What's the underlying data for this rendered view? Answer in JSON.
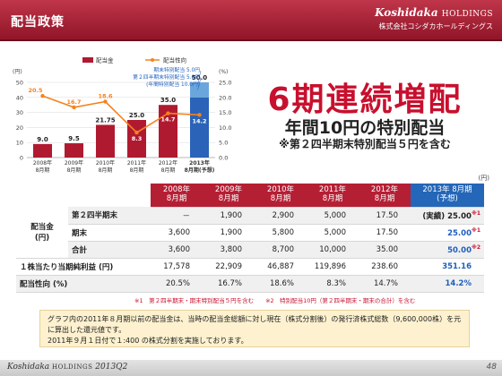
{
  "header": {
    "title": "配当政策",
    "brand_name": "Koshidaka",
    "brand_suffix": "HOLDINGS",
    "company_name": "株式会社コシダカホールディングス"
  },
  "headline": {
    "main": "6期連続増配",
    "sub": "年間10円の特別配当",
    "sub2": "※第２四半期末特別配当５円を含む"
  },
  "chart_data": {
    "type": "bar",
    "categories": [
      "2008年\n8月期",
      "2009年\n8月期",
      "2010年\n8月期",
      "2011年\n8月期",
      "2012年\n8月期",
      "2013年\n8月期(予想)"
    ],
    "series": [
      {
        "name": "配当金",
        "type": "bar",
        "axis": "left",
        "values": [
          9.0,
          9.5,
          21.75,
          25.0,
          35.0,
          50.0
        ],
        "special": [
          0,
          0,
          0,
          0,
          0,
          10.0
        ],
        "color": "#b01a30"
      },
      {
        "name": "配当性向",
        "type": "line",
        "axis": "right",
        "values": [
          20.5,
          16.7,
          18.6,
          8.3,
          14.7,
          14.2
        ],
        "color": "#f5821f"
      }
    ],
    "bar_labels": [
      "9.0",
      "9.5",
      "21.75",
      "25.0",
      "35.0",
      "50.0"
    ],
    "line_labels": [
      "20.5",
      "16.7",
      "18.6",
      "8.3",
      "14.7",
      "14.2"
    ],
    "left_axis": {
      "unit": "(円)",
      "ticks": [
        0,
        10,
        20,
        30,
        40,
        50
      ],
      "range": [
        0,
        50
      ]
    },
    "right_axis": {
      "unit": "(%)",
      "ticks": [
        "0.0",
        "5.0",
        "10.0",
        "15.0",
        "20.0",
        "25.0"
      ],
      "range": [
        0,
        25
      ]
    },
    "annotation": [
      "期末特別配当 5.0円",
      "第２四半期末特別配当 5.0円",
      "(年間特別配当 10.0円)"
    ],
    "highlight_colors": {
      "bar": "#2a63b8",
      "special": "#6aa6dc"
    }
  },
  "table": {
    "unit": "(円)",
    "headers": [
      "2008年\n8月期",
      "2009年\n8月期",
      "2010年\n8月期",
      "2011年\n8月期",
      "2012年\n8月期",
      "2013年 8月期\n(予想)"
    ],
    "group_label": "配当金\n(円)",
    "rows": [
      {
        "label": "第２四半期末",
        "values": [
          "－",
          "1,900",
          "2,900",
          "5,000",
          "17.50"
        ],
        "forecast": "(実績) 25.00",
        "mark": "※1"
      },
      {
        "label": "期末",
        "values": [
          "3,600",
          "1,900",
          "5,800",
          "5,000",
          "17.50"
        ],
        "forecast": "25.00",
        "mark": "※1"
      },
      {
        "label": "合計",
        "values": [
          "3,600",
          "3,800",
          "8,700",
          "10,000",
          "35.00"
        ],
        "forecast": "50.00",
        "mark": "※2"
      }
    ],
    "eps": {
      "label": "１株当たり当期純利益 (円)",
      "values": [
        "17,578",
        "22,909",
        "46,887",
        "119,896",
        "238.60"
      ],
      "forecast": "351.16"
    },
    "payout": {
      "label": "配当性向 (%)",
      "values": [
        "20.5%",
        "16.7%",
        "18.6%",
        "8.3%",
        "14.7%"
      ],
      "forecast": "14.2%"
    }
  },
  "footnote": "※1　第２四半期末・期末特別配当５円を含む　　※2　特別配当10円（第２四半期末・期末の合計）を含む",
  "notes": [
    "グラフ内の2011年８月期以前の配当金は、当時の配当金総額に対し現在（株式分割後）の発行済株式総数（9,600,000株）を元に算出した還元値です。",
    "2011年９月１日付で１:400 の株式分割を実施しております。"
  ],
  "footer": {
    "brand": "Koshidaka",
    "suffix": "HOLDINGS",
    "period": "2013Q2",
    "page": "48"
  }
}
